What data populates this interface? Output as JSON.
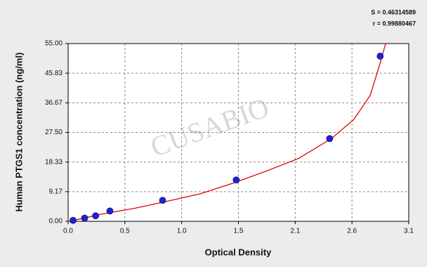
{
  "chart_data": {
    "type": "scatter",
    "x_label": "Optical Density",
    "y_label": "Human PTGS1  concentration (ng/ml)",
    "annotations": [
      "S = 0.46314589",
      "r = 0.99880467"
    ],
    "watermark": "CUSABIO",
    "xlim": [
      0,
      3.1
    ],
    "ylim": [
      0,
      55
    ],
    "xticks": [
      {
        "value": 0,
        "label": "0.0"
      },
      {
        "value": 0.5167,
        "label": "0.5"
      },
      {
        "value": 1.0333,
        "label": "1.0"
      },
      {
        "value": 1.55,
        "label": "1.5"
      },
      {
        "value": 2.0667,
        "label": "2.1"
      },
      {
        "value": 2.5833,
        "label": "2.6"
      },
      {
        "value": 3.1,
        "label": "3.1"
      }
    ],
    "yticks": [
      {
        "value": 0,
        "label": "0.00"
      },
      {
        "value": 9.17,
        "label": "9.17"
      },
      {
        "value": 18.33,
        "label": "18.33"
      },
      {
        "value": 27.5,
        "label": "27.50"
      },
      {
        "value": 36.67,
        "label": "36.67"
      },
      {
        "value": 45.83,
        "label": "45.83"
      },
      {
        "value": 55,
        "label": "55.00"
      }
    ],
    "grid": true,
    "series": [
      {
        "mode": "markers",
        "color": "#2020d8",
        "x": [
          0.045,
          0.15,
          0.25,
          0.38,
          0.86,
          1.53,
          2.38,
          2.84
        ],
        "values": [
          0.3,
          1.0,
          1.7,
          3.2,
          6.5,
          12.8,
          25.6,
          51.1
        ]
      },
      {
        "mode": "line",
        "color": "#e00000",
        "x": [
          0.0,
          0.05,
          0.3,
          0.6,
          0.9,
          1.2,
          1.5,
          1.8,
          2.1,
          2.4,
          2.6,
          2.75,
          2.84,
          2.89
        ],
        "values": [
          0.0,
          0.3,
          2.2,
          4.0,
          6.2,
          8.5,
          11.8,
          15.5,
          19.5,
          25.7,
          31.5,
          39,
          49,
          55
        ]
      }
    ]
  }
}
